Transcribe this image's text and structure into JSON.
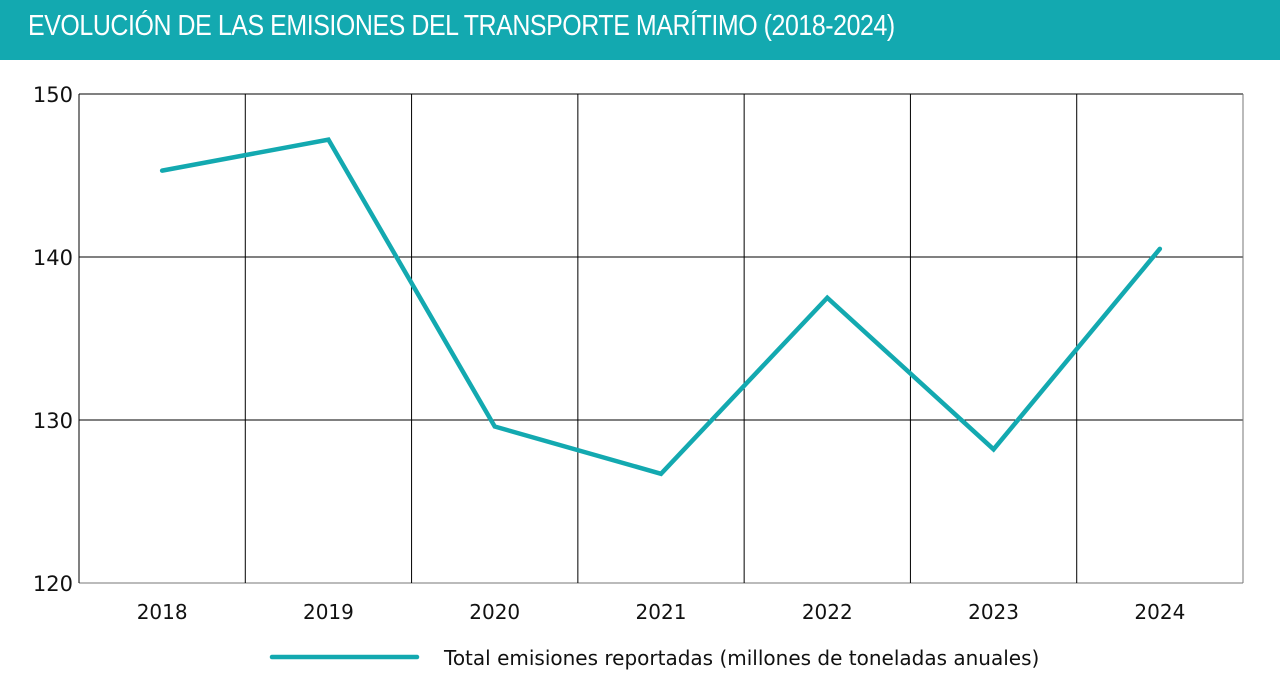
{
  "header": {
    "title": "EVOLUCIÓN DE LAS EMISIONES DEL TRANSPORTE MARÍTIMO (2018-2024)"
  },
  "colors": {
    "accent": "#13a9b0",
    "grid": "#000000"
  },
  "chart_data": {
    "type": "line",
    "title": "EVOLUCIÓN DE LAS EMISIONES DEL TRANSPORTE MARÍTIMO (2018-2024)",
    "categories": [
      "2018",
      "2019",
      "2020",
      "2021",
      "2022",
      "2023",
      "2024"
    ],
    "series": [
      {
        "name": "Total emisiones reportadas (millones de toneladas anuales)",
        "values": [
          145.3,
          147.2,
          129.6,
          126.7,
          137.5,
          128.2,
          140.5
        ],
        "color": "#13a9b0"
      }
    ],
    "ylim": [
      120,
      150
    ],
    "yticks": [
      "120",
      "130",
      "140",
      "150"
    ],
    "xlabel": "",
    "ylabel": "",
    "grid": true,
    "legend": "bottom"
  }
}
